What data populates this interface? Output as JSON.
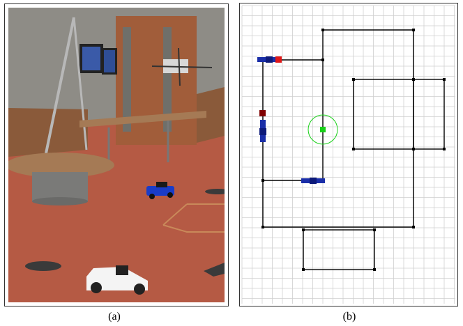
{
  "figure": {
    "panel_a": {
      "caption": "(a)",
      "image": "photo-lab-floor-rc-cars-quadrotor",
      "colors": {
        "floor": "#b55a44",
        "wall": "#8e8c86",
        "door": "#a15d3a",
        "table": "#a57a55"
      }
    },
    "panel_b": {
      "caption": "(b)",
      "colors": {
        "grid": "#cfcfcf",
        "path": "#000000",
        "car_blue": "#1a2ea8",
        "car_dark_blue": "#0d1a7a",
        "marker_red": "#e01818",
        "marker_dark_red": "#800000",
        "target": "#18d018",
        "target_ring": "#18d018"
      }
    }
  }
}
